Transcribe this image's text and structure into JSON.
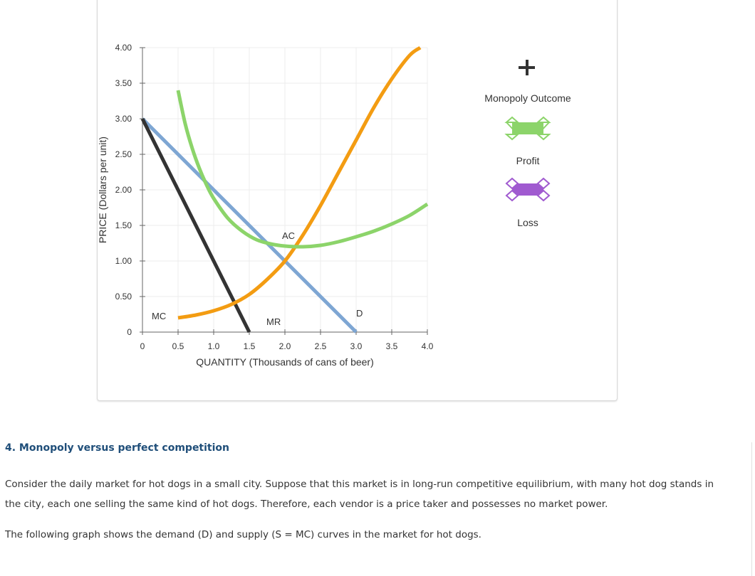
{
  "chart_data": {
    "type": "line",
    "xlabel": "QUANTITY (Thousands of cans of beer)",
    "ylabel": "PRICE (Dollars per unit)",
    "xlim": [
      0,
      4
    ],
    "ylim": [
      0,
      4
    ],
    "x_ticks": [
      "0",
      "0.5",
      "1.0",
      "1.5",
      "2.0",
      "2.5",
      "3.0",
      "3.5",
      "4.0"
    ],
    "y_ticks": [
      "0",
      "0.50",
      "1.00",
      "1.50",
      "2.00",
      "2.50",
      "3.00",
      "3.50",
      "4.00"
    ],
    "grid": true,
    "series": [
      {
        "name": "D",
        "color": "#7ea6d3",
        "x": [
          0,
          3
        ],
        "y": [
          3,
          0
        ]
      },
      {
        "name": "MR",
        "color": "#333333",
        "x": [
          0,
          1.5
        ],
        "y": [
          3,
          0
        ]
      },
      {
        "name": "MC",
        "color": "#f39c12",
        "x": [
          0.5,
          0.75,
          1,
          1.25,
          1.5,
          1.75,
          2,
          2.25,
          2.5,
          2.75,
          3,
          3.25,
          3.5,
          3.75,
          3.9
        ],
        "y": [
          0.2,
          0.24,
          0.3,
          0.39,
          0.53,
          0.74,
          1.0,
          1.36,
          1.78,
          2.24,
          2.7,
          3.16,
          3.56,
          3.89,
          4.0
        ]
      },
      {
        "name": "AC",
        "color": "#8cd46a",
        "x": [
          0.5,
          0.6,
          0.7,
          0.8,
          0.9,
          1,
          1.2,
          1.4,
          1.6,
          1.8,
          2,
          2.25,
          2.5,
          2.75,
          3,
          3.25,
          3.5,
          3.75,
          4
        ],
        "y": [
          3.4,
          2.93,
          2.58,
          2.3,
          2.07,
          1.88,
          1.6,
          1.42,
          1.3,
          1.24,
          1.21,
          1.2,
          1.22,
          1.27,
          1.34,
          1.42,
          1.52,
          1.64,
          1.8
        ]
      }
    ],
    "curve_labels": [
      {
        "text": "MC",
        "x": 0.13,
        "y": 0.18
      },
      {
        "text": "MR",
        "x": 1.74,
        "y": 0.1
      },
      {
        "text": "AC",
        "x": 1.96,
        "y": 1.31
      },
      {
        "text": "D",
        "x": 3.0,
        "y": 0.22
      }
    ]
  },
  "legend": {
    "title": "Monopoly Outcome",
    "profit_label": "Profit",
    "loss_label": "Loss",
    "profit_color": "#8cd46a",
    "loss_color": "#a05ad0"
  },
  "question": {
    "title": "4. Monopoly versus perfect competition",
    "para1_line1": "Consider the daily market for hot dogs in a small city. Suppose that this market is in long-run competitive equilibrium, with many hot dog stands in",
    "para1_line2": "the city, each one selling the same kind of hot dogs. Therefore, each vendor is a price taker and possesses no market power.",
    "para2": "The following graph shows the demand (D) and supply (S = MC) curves in the market for hot dogs."
  }
}
